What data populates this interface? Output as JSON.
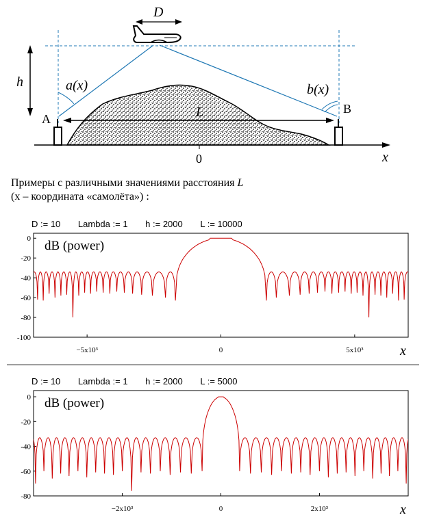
{
  "scene": {
    "label_D": "D",
    "label_h": "h",
    "label_a": "a(x)",
    "label_b": "b(x)",
    "label_L": "L",
    "label_A": "A",
    "label_B": "B",
    "label_origin": "0",
    "label_x": "x",
    "colors": {
      "rays": "#1f78b4",
      "dashed": "#1f78b4",
      "terrain": "#000000"
    }
  },
  "caption": {
    "line1_prefix": "Примеры с различными значениями расстояния ",
    "line1_var": "L",
    "line2": "(x – координата «самолёта») :"
  },
  "plots": [
    {
      "params": [
        "D := 10",
        "Lambda := 1",
        "h := 2000",
        "L := 10000"
      ],
      "ylabel": "dB (power)",
      "xvar": "x",
      "chart_data": {
        "type": "line",
        "color": "#cc0000",
        "xlim": [
          -7000,
          7000
        ],
        "ylim": [
          -100,
          5
        ],
        "yticks": [
          0,
          -20,
          -40,
          -60,
          -80,
          -100
        ],
        "xtick_values": [
          -5000,
          0,
          5000
        ],
        "xtick_labels": [
          "−5x10³",
          "0",
          "5x10³"
        ],
        "lobe_x": [
          -6850,
          -6640,
          -6420,
          -6200,
          -5980,
          -5760,
          -5530,
          -5310,
          -5090,
          -4870,
          -4640,
          -4400,
          -4150,
          -3890,
          -3610,
          -3300,
          -2960,
          -2560,
          -2070,
          -1700,
          1700,
          2070,
          2560,
          2960,
          3300,
          3610,
          3890,
          4150,
          4400,
          4640,
          4870,
          5090,
          5310,
          5530,
          5760,
          5980,
          6200,
          6420,
          6640,
          6850
        ],
        "lobe_peak": -34,
        "main_lobe": {
          "from": -1700,
          "to": 1700,
          "peak": 0,
          "flat": [
            -400,
            400
          ]
        },
        "null_depths": [
          -62,
          -63,
          -56,
          -60,
          -58,
          -57,
          -80,
          -58,
          -55,
          -56,
          -54,
          -55,
          -56,
          -54,
          -55,
          -56,
          -57,
          -58,
          -60,
          -63,
          -63,
          -60,
          -58,
          -57,
          -56,
          -55,
          -54,
          -56,
          -55,
          -54,
          -56,
          -55,
          -58,
          -80,
          -57,
          -58,
          -60,
          -56,
          -63,
          -62
        ]
      }
    },
    {
      "params": [
        "D := 10",
        "Lambda := 1",
        "h := 2000",
        "L := 5000"
      ],
      "ylabel": "dB (power)",
      "xvar": "x",
      "chart_data": {
        "type": "line",
        "color": "#cc0000",
        "xlim": [
          -3800,
          3800
        ],
        "ylim": [
          -80,
          5
        ],
        "yticks": [
          0,
          -20,
          -40,
          -60,
          -80
        ],
        "xtick_values": [
          -2000,
          0,
          2000
        ],
        "xtick_labels": [
          "−2x10³",
          "0",
          "2x10³"
        ],
        "lobe_x": [
          -3760,
          -3590,
          -3420,
          -3250,
          -3080,
          -2900,
          -2720,
          -2540,
          -2360,
          -2180,
          -2000,
          -1810,
          -1620,
          -1430,
          -1230,
          -1030,
          -820,
          -600,
          -380,
          380,
          600,
          820,
          1030,
          1230,
          1430,
          1620,
          1810,
          2000,
          2180,
          2360,
          2540,
          2720,
          2900,
          3080,
          3250,
          3420,
          3590,
          3760
        ],
        "lobe_peak": -33,
        "main_lobe": {
          "from": -380,
          "to": 380,
          "peak": 0,
          "flat": [
            -60,
            60
          ]
        },
        "null_depths": [
          -70,
          -60,
          -66,
          -62,
          -64,
          -60,
          -65,
          -61,
          -62,
          -63,
          -60,
          -76,
          -61,
          -62,
          -60,
          -63,
          -61,
          -62,
          -60,
          -60,
          -62,
          -61,
          -63,
          -60,
          -62,
          -61,
          -63,
          -60,
          -65,
          -62,
          -61,
          -64,
          -60,
          -66,
          -62,
          -64,
          -60,
          -70
        ]
      }
    }
  ]
}
